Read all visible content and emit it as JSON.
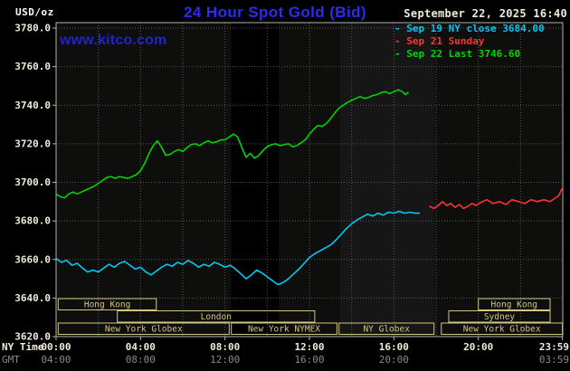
{
  "header": {
    "units_label": "USD/oz",
    "title": "24 Hour Spot Gold (Bid)",
    "datetime": "September 22, 2025 16:40",
    "watermark": "www.kitco.com"
  },
  "legend": [
    {
      "label": "Sep 19 NY close 3684.00",
      "color": "#00c8f5"
    },
    {
      "label": "Sep 21 Sunday",
      "color": "#ff3232"
    },
    {
      "label": "Sep 22 Last 3746.60",
      "color": "#00d400"
    }
  ],
  "axes": {
    "ny_time_label": "NY Time",
    "gmt_label": "GMT",
    "y_ticks": [
      "3780.0",
      "3760.0",
      "3740.0",
      "3720.0",
      "3700.0",
      "3680.0",
      "3660.0",
      "3640.0",
      "3620.0"
    ],
    "x_ticks_ny": [
      {
        "label": "00:00",
        "hour": 0
      },
      {
        "label": "04:00",
        "hour": 4
      },
      {
        "label": "08:00",
        "hour": 8
      },
      {
        "label": "12:00",
        "hour": 12
      },
      {
        "label": "16:00",
        "hour": 16
      },
      {
        "label": "20:00",
        "hour": 20
      },
      {
        "label": "23:59",
        "hour": 23.983
      }
    ],
    "x_ticks_gmt": [
      {
        "label": "04:00",
        "hour": 0
      },
      {
        "label": "08:00",
        "hour": 4
      },
      {
        "label": "12:00",
        "hour": 8
      },
      {
        "label": "16:00",
        "hour": 12
      },
      {
        "label": "20:00",
        "hour": 16
      },
      {
        "label": "03:59",
        "hour": 23.983
      }
    ]
  },
  "sessions": [
    {
      "label": "Hong Kong",
      "row": 0,
      "start_hour": 0.1,
      "end_hour": 4.75
    },
    {
      "label": "Hong Kong",
      "row": 0,
      "start_hour": 20.0,
      "end_hour": 23.4
    },
    {
      "label": "London",
      "row": 1,
      "start_hour": 2.9,
      "end_hour": 12.25
    },
    {
      "label": "Sydney",
      "row": 1,
      "start_hour": 18.6,
      "end_hour": 23.4
    },
    {
      "label": "New York Globex",
      "row": 2,
      "start_hour": 0.1,
      "end_hour": 8.2
    },
    {
      "label": "New York NYMEX",
      "row": 2,
      "start_hour": 8.3,
      "end_hour": 13.3
    },
    {
      "label": "NY Globex",
      "row": 2,
      "start_hour": 13.4,
      "end_hour": 17.9
    },
    {
      "label": "New York Globex",
      "row": 2,
      "start_hour": 18.25,
      "end_hour": 23.983
    }
  ],
  "colors": {
    "background": "#000000",
    "plot_background": "#0e0e0c",
    "grid": "#565656",
    "border": "#b0b0b0",
    "title_blue": "#2b2bf5",
    "watermark_blue": "#2323cc",
    "axis_text": "#f0ead8",
    "gmt_text": "#8a8a8a",
    "session": "#d4c685"
  },
  "chart_data": {
    "type": "line",
    "title": "24 Hour Spot Gold (Bid)",
    "xlabel": "NY time (hours)",
    "ylabel": "USD/oz",
    "xlim": [
      0,
      24
    ],
    "ylim": [
      3620,
      3780
    ],
    "y_gridline_step": 20,
    "x_gridline_step_hours": 2,
    "grid": true,
    "legend_position": "top-right",
    "shaded_bands": [
      {
        "start_hour": 8.3,
        "end_hour": 10.55,
        "color": "#000000"
      },
      {
        "start_hour": 13.45,
        "end_hour": 17.9,
        "color": "#161616"
      }
    ],
    "series": [
      {
        "name": "Sep 19 NY close",
        "color": "#00c8f5",
        "close_value": 3684.0,
        "points": [
          [
            0,
            3660.5
          ],
          [
            0.25,
            3658.5
          ],
          [
            0.5,
            3659.5
          ],
          [
            0.75,
            3657
          ],
          [
            1,
            3658
          ],
          [
            1.25,
            3655.5
          ],
          [
            1.5,
            3653.5
          ],
          [
            1.75,
            3654.5
          ],
          [
            2,
            3653.5
          ],
          [
            2.25,
            3655.5
          ],
          [
            2.5,
            3657.5
          ],
          [
            2.75,
            3656
          ],
          [
            3,
            3658
          ],
          [
            3.25,
            3659
          ],
          [
            3.5,
            3657
          ],
          [
            3.75,
            3655
          ],
          [
            4,
            3656
          ],
          [
            4.25,
            3653.5
          ],
          [
            4.5,
            3652
          ],
          [
            4.75,
            3654
          ],
          [
            5,
            3656
          ],
          [
            5.25,
            3657.5
          ],
          [
            5.5,
            3656.5
          ],
          [
            5.75,
            3658.5
          ],
          [
            6,
            3657.5
          ],
          [
            6.25,
            3659.5
          ],
          [
            6.5,
            3658
          ],
          [
            6.75,
            3656
          ],
          [
            7,
            3657.5
          ],
          [
            7.25,
            3656.5
          ],
          [
            7.5,
            3658.5
          ],
          [
            7.75,
            3657.5
          ],
          [
            8,
            3656
          ],
          [
            8.25,
            3657
          ],
          [
            8.5,
            3655
          ],
          [
            8.75,
            3652.5
          ],
          [
            9,
            3650
          ],
          [
            9.25,
            3652
          ],
          [
            9.5,
            3654.5
          ],
          [
            9.75,
            3653
          ],
          [
            10,
            3651
          ],
          [
            10.25,
            3649
          ],
          [
            10.5,
            3647
          ],
          [
            10.75,
            3648
          ],
          [
            11,
            3650
          ],
          [
            11.25,
            3652.5
          ],
          [
            11.5,
            3655
          ],
          [
            11.75,
            3658
          ],
          [
            12,
            3661
          ],
          [
            12.25,
            3663
          ],
          [
            12.5,
            3664.5
          ],
          [
            12.75,
            3666
          ],
          [
            13,
            3667.5
          ],
          [
            13.25,
            3670
          ],
          [
            13.5,
            3673
          ],
          [
            13.75,
            3676
          ],
          [
            14,
            3678.5
          ],
          [
            14.25,
            3680.5
          ],
          [
            14.5,
            3682
          ],
          [
            14.75,
            3683.5
          ],
          [
            15,
            3682.5
          ],
          [
            15.25,
            3684
          ],
          [
            15.5,
            3683
          ],
          [
            15.75,
            3684.5
          ],
          [
            16,
            3684
          ],
          [
            16.25,
            3685
          ],
          [
            16.5,
            3684
          ],
          [
            16.75,
            3684.5
          ],
          [
            17,
            3684
          ],
          [
            17.2,
            3684
          ]
        ]
      },
      {
        "name": "Sep 21 Sunday",
        "color": "#ff3232",
        "points": [
          [
            17.7,
            3687.5
          ],
          [
            17.9,
            3686.5
          ],
          [
            18.1,
            3688
          ],
          [
            18.3,
            3690
          ],
          [
            18.5,
            3688
          ],
          [
            18.7,
            3689
          ],
          [
            18.9,
            3687
          ],
          [
            19.1,
            3688.5
          ],
          [
            19.3,
            3686.5
          ],
          [
            19.5,
            3687.5
          ],
          [
            19.7,
            3689
          ],
          [
            19.9,
            3688
          ],
          [
            20.1,
            3689.5
          ],
          [
            20.4,
            3691
          ],
          [
            20.7,
            3689
          ],
          [
            21,
            3690
          ],
          [
            21.3,
            3688.5
          ],
          [
            21.6,
            3691
          ],
          [
            21.9,
            3690
          ],
          [
            22.2,
            3689
          ],
          [
            22.5,
            3691
          ],
          [
            22.8,
            3690
          ],
          [
            23.1,
            3691
          ],
          [
            23.4,
            3690
          ],
          [
            23.6,
            3691.5
          ],
          [
            23.8,
            3693
          ],
          [
            23.983,
            3697
          ]
        ]
      },
      {
        "name": "Sep 22",
        "color": "#00d400",
        "last_value": 3746.6,
        "points": [
          [
            0,
            3694
          ],
          [
            0.2,
            3692.5
          ],
          [
            0.4,
            3692
          ],
          [
            0.6,
            3694
          ],
          [
            0.8,
            3695
          ],
          [
            1,
            3694
          ],
          [
            1.2,
            3695
          ],
          [
            1.4,
            3696
          ],
          [
            1.6,
            3697
          ],
          [
            1.8,
            3698
          ],
          [
            2,
            3699.5
          ],
          [
            2.2,
            3701
          ],
          [
            2.4,
            3702.5
          ],
          [
            2.6,
            3703
          ],
          [
            2.8,
            3702
          ],
          [
            3,
            3703
          ],
          [
            3.2,
            3702.5
          ],
          [
            3.4,
            3702
          ],
          [
            3.6,
            3703
          ],
          [
            3.8,
            3704
          ],
          [
            4,
            3706
          ],
          [
            4.2,
            3710
          ],
          [
            4.4,
            3715
          ],
          [
            4.6,
            3719
          ],
          [
            4.8,
            3721.5
          ],
          [
            5,
            3718
          ],
          [
            5.2,
            3714
          ],
          [
            5.4,
            3714.5
          ],
          [
            5.6,
            3716
          ],
          [
            5.8,
            3717
          ],
          [
            6,
            3716
          ],
          [
            6.2,
            3718
          ],
          [
            6.4,
            3719.5
          ],
          [
            6.6,
            3720
          ],
          [
            6.8,
            3719
          ],
          [
            7,
            3720.5
          ],
          [
            7.2,
            3721.5
          ],
          [
            7.4,
            3720.5
          ],
          [
            7.6,
            3721
          ],
          [
            7.8,
            3722
          ],
          [
            8,
            3722
          ],
          [
            8.2,
            3723.5
          ],
          [
            8.4,
            3725
          ],
          [
            8.6,
            3723.5
          ],
          [
            8.8,
            3718
          ],
          [
            9,
            3713
          ],
          [
            9.2,
            3715
          ],
          [
            9.4,
            3712.5
          ],
          [
            9.6,
            3714
          ],
          [
            9.8,
            3716.5
          ],
          [
            10,
            3718.5
          ],
          [
            10.2,
            3719.5
          ],
          [
            10.4,
            3720
          ],
          [
            10.6,
            3719
          ],
          [
            10.8,
            3719.5
          ],
          [
            11,
            3720
          ],
          [
            11.2,
            3718.5
          ],
          [
            11.4,
            3719
          ],
          [
            11.6,
            3720.5
          ],
          [
            11.8,
            3722
          ],
          [
            12,
            3725
          ],
          [
            12.2,
            3727.5
          ],
          [
            12.4,
            3729.5
          ],
          [
            12.6,
            3729
          ],
          [
            12.8,
            3730.5
          ],
          [
            13,
            3733
          ],
          [
            13.2,
            3736
          ],
          [
            13.4,
            3738.5
          ],
          [
            13.6,
            3740
          ],
          [
            13.8,
            3741.5
          ],
          [
            14,
            3742.5
          ],
          [
            14.2,
            3743.5
          ],
          [
            14.4,
            3744.5
          ],
          [
            14.6,
            3743.5
          ],
          [
            14.8,
            3744
          ],
          [
            15,
            3745
          ],
          [
            15.2,
            3745.5
          ],
          [
            15.4,
            3746.5
          ],
          [
            15.6,
            3747
          ],
          [
            15.8,
            3746
          ],
          [
            16,
            3747
          ],
          [
            16.2,
            3748
          ],
          [
            16.4,
            3747
          ],
          [
            16.55,
            3745.5
          ],
          [
            16.67,
            3746.6
          ]
        ]
      }
    ]
  }
}
